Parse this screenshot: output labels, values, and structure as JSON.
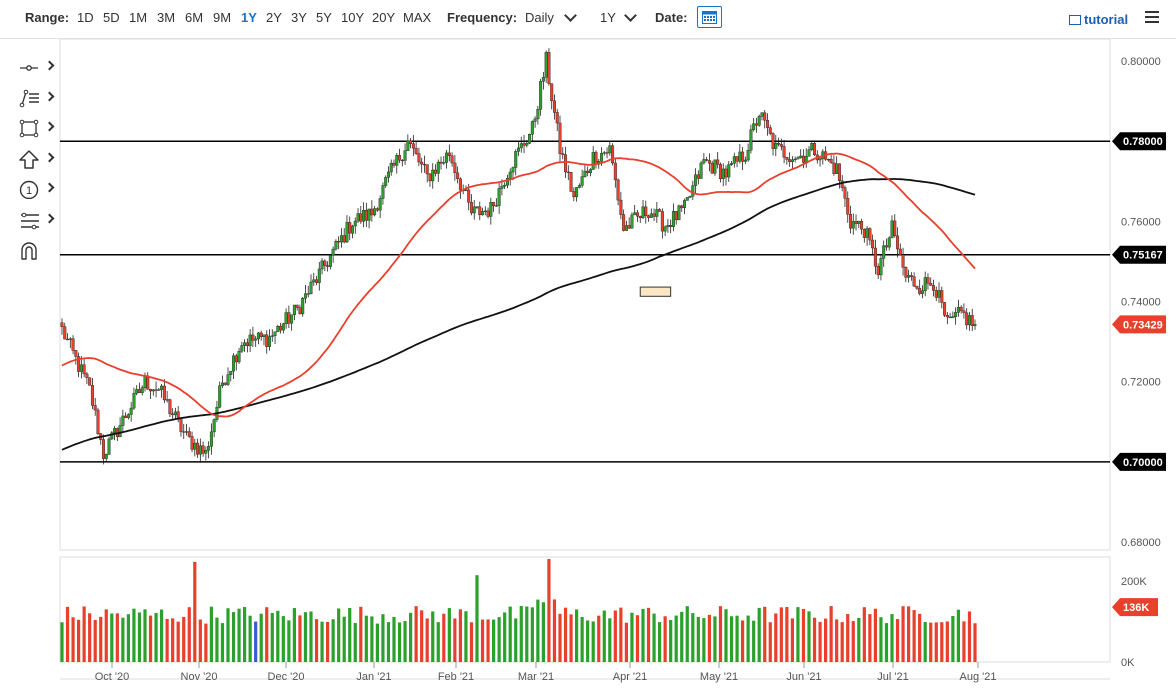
{
  "toolbar": {
    "range_label": "Range:",
    "ranges": [
      "1D",
      "5D",
      "1M",
      "3M",
      "6M",
      "9M",
      "1Y",
      "2Y",
      "3Y",
      "5Y",
      "10Y",
      "20Y",
      "MAX"
    ],
    "active_range": "1Y",
    "frequency_label": "Frequency:",
    "frequency_value": "Daily",
    "period_value": "1Y",
    "date_label": "Date:",
    "tutorial_label": "tutorial"
  },
  "drawing_tools": [
    "crosshair-tool",
    "line-tool",
    "rectangle-tool",
    "arrow-tool",
    "number-marker-tool",
    "fibonacci-tool",
    "magnet-tool"
  ],
  "drawing_tool_labels": {
    "number_marker": "1"
  },
  "colors": {
    "up": "#2ca02c",
    "down": "#e8402d",
    "ma_fast": "#e8402d",
    "ma_slow": "#111111",
    "accent": "#1a73c8",
    "volume_blue": "#3b5bd6"
  },
  "chart_data": {
    "type": "candlestick",
    "y_axis": {
      "min": 0.678,
      "max": 0.804,
      "ticks": [
        "0.80000",
        "0.78000",
        "0.76000",
        "0.74000",
        "0.72000",
        "0.70000",
        "0.68000"
      ]
    },
    "x_axis": {
      "ticks": [
        "Oct '20",
        "Nov '20",
        "Dec '20",
        "Jan '21",
        "Feb '21",
        "Mar '21",
        "Apr '21",
        "May '21",
        "Jun '21",
        "Jul '21",
        "Aug '21"
      ]
    },
    "horizontal_lines": [
      {
        "value": 0.78,
        "label": "0.78000"
      },
      {
        "value": 0.75167,
        "label": "0.75167"
      },
      {
        "value": 0.7,
        "label": "0.70000"
      }
    ],
    "last_price": {
      "value": 0.73429,
      "label": "0.73429"
    },
    "zone_boxes": [
      {
        "from_idx": 209,
        "to_idx": 220,
        "low": 0.7413,
        "high": 0.7436
      }
    ],
    "key_points": [
      [
        0,
        0.733
      ],
      [
        10,
        0.718
      ],
      [
        15,
        0.702
      ],
      [
        30,
        0.72
      ],
      [
        35,
        0.718
      ],
      [
        45,
        0.706
      ],
      [
        52,
        0.702
      ],
      [
        58,
        0.72
      ],
      [
        65,
        0.73
      ],
      [
        75,
        0.731
      ],
      [
        85,
        0.738
      ],
      [
        95,
        0.749
      ],
      [
        105,
        0.76
      ],
      [
        112,
        0.762
      ],
      [
        118,
        0.771
      ],
      [
        125,
        0.78
      ],
      [
        132,
        0.771
      ],
      [
        140,
        0.777
      ],
      [
        148,
        0.762
      ],
      [
        155,
        0.763
      ],
      [
        162,
        0.774
      ],
      [
        170,
        0.783
      ],
      [
        175,
        0.8
      ],
      [
        180,
        0.778
      ],
      [
        185,
        0.766
      ],
      [
        192,
        0.776
      ],
      [
        198,
        0.778
      ],
      [
        203,
        0.758
      ],
      [
        212,
        0.763
      ],
      [
        218,
        0.759
      ],
      [
        225,
        0.763
      ],
      [
        232,
        0.775
      ],
      [
        240,
        0.772
      ],
      [
        247,
        0.777
      ],
      [
        252,
        0.787
      ],
      [
        258,
        0.778
      ],
      [
        266,
        0.776
      ],
      [
        272,
        0.778
      ],
      [
        280,
        0.773
      ],
      [
        285,
        0.76
      ],
      [
        290,
        0.758
      ],
      [
        295,
        0.748
      ],
      [
        300,
        0.758
      ],
      [
        305,
        0.746
      ],
      [
        310,
        0.744
      ],
      [
        315,
        0.745
      ],
      [
        320,
        0.734
      ],
      [
        325,
        0.737
      ],
      [
        330,
        0.734
      ]
    ],
    "ma_fast": {
      "name": "",
      "period": 50
    },
    "ma_slow": {
      "name": "",
      "period": 200
    },
    "volume": {
      "ticks": [
        "200K",
        "0K"
      ],
      "max": 260,
      "last_label": "136K"
    }
  }
}
